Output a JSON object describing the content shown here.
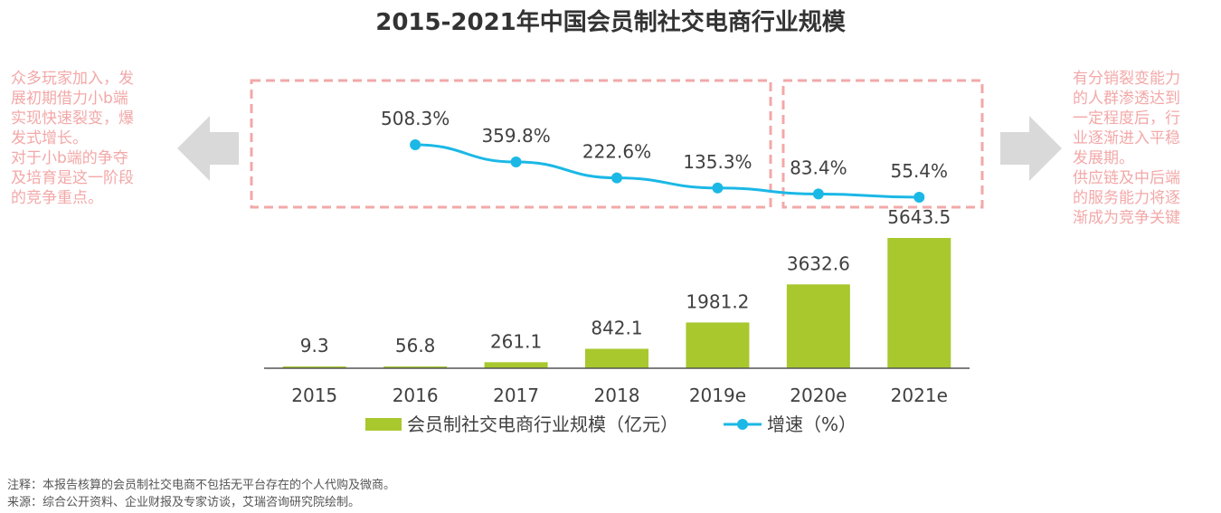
{
  "title": "2015-2021年中国会员制社交电商行业规模",
  "left_note": {
    "lines": [
      "众多玩家加入，发",
      "展初期借力小b端",
      "实现快速裂变，爆",
      "发式增长。",
      "对于小b端的争夺",
      "及培育是这一阶段",
      "的竞争重点。"
    ]
  },
  "right_note": {
    "lines": [
      "有分销裂变能力",
      "的人群渗透达到",
      "一定程度后，行",
      "业逐渐进入平稳",
      "发展期。",
      "供应链及中后端",
      "的服务能力将逐",
      "渐成为竞争关键"
    ]
  },
  "footnotes": {
    "note": "注释：本报告核算的会员制社交电商不包括无平台存在的个人代购及微商。",
    "source": "来源：综合公开资料、企业财报及专家访谈，艾瑞咨询研究院绘制。"
  },
  "colors": {
    "bar": "#a8c82e",
    "line": "#1bb8e6",
    "annotation": "#f3a8a8",
    "arrow": "#d9d9d9",
    "axis": "#555555"
  },
  "chart_data": {
    "type": "bar",
    "categories": [
      "2015",
      "2016",
      "2017",
      "2018",
      "2019e",
      "2020e",
      "2021e"
    ],
    "series": [
      {
        "name": "会员制社交电商行业规模（亿元）",
        "type": "bar",
        "values": [
          9.3,
          56.8,
          261.1,
          842.1,
          1981.2,
          3632.6,
          5643.5
        ],
        "labels": [
          "9.3",
          "56.8",
          "261.1",
          "842.1",
          "1981.2",
          "3632.6",
          "5643.5"
        ]
      },
      {
        "name": "增速（%）",
        "type": "line",
        "values": [
          null,
          508.3,
          359.8,
          222.6,
          135.3,
          83.4,
          55.4
        ],
        "labels": [
          "",
          "508.3%",
          "359.8%",
          "222.6%",
          "135.3%",
          "83.4%",
          "55.4%"
        ]
      }
    ],
    "legend": "bottom",
    "grid": false
  }
}
